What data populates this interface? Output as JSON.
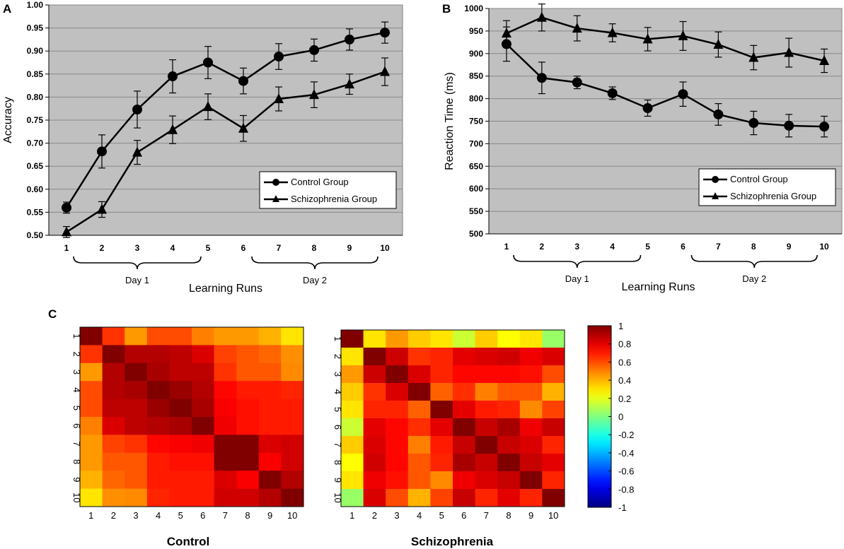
{
  "colors": {
    "plot_bg": "#c0c0c0",
    "grid": "#888888",
    "series": "#000000"
  },
  "chart_data": [
    {
      "panel": "A",
      "type": "line",
      "xlabel": "Learning Runs",
      "ylabel": "Accuracy",
      "x": [
        1,
        2,
        3,
        4,
        5,
        6,
        7,
        8,
        9,
        10
      ],
      "xticklabels": [
        "1",
        "2",
        "3",
        "4",
        "5",
        "6",
        "7",
        "8",
        "9",
        "10"
      ],
      "ylim": [
        0.5,
        1.0
      ],
      "yticks": [
        0.5,
        0.55,
        0.6,
        0.65,
        0.7,
        0.75,
        0.8,
        0.85,
        0.9,
        0.95,
        1.0
      ],
      "yticklabels": [
        "0.50",
        "0.55",
        "0.60",
        "0.65",
        "0.70",
        "0.75",
        "0.80",
        "0.85",
        "0.90",
        "0.95",
        "1.00"
      ],
      "grid": true,
      "legend": "lower-right",
      "series": [
        {
          "name": "Control Group",
          "marker": "circle",
          "values": [
            0.56,
            0.682,
            0.773,
            0.845,
            0.875,
            0.835,
            0.888,
            0.902,
            0.925,
            0.94
          ],
          "errors": [
            0.012,
            0.036,
            0.04,
            0.036,
            0.035,
            0.028,
            0.028,
            0.024,
            0.023,
            0.023
          ]
        },
        {
          "name": "Schizophrenia Group",
          "marker": "triangle",
          "values": [
            0.507,
            0.556,
            0.68,
            0.729,
            0.779,
            0.732,
            0.796,
            0.805,
            0.828,
            0.855
          ],
          "errors": [
            0.012,
            0.017,
            0.026,
            0.03,
            0.028,
            0.028,
            0.026,
            0.028,
            0.022,
            0.03
          ]
        }
      ],
      "annotations": [
        {
          "text": "Day 1",
          "runs": [
            1,
            5
          ]
        },
        {
          "text": "Day 2",
          "runs": [
            6,
            10
          ]
        }
      ]
    },
    {
      "panel": "B",
      "type": "line",
      "xlabel": "Learning Runs",
      "ylabel": "Reaction Time (ms)",
      "x": [
        1,
        2,
        3,
        4,
        5,
        6,
        7,
        8,
        9,
        10
      ],
      "xticklabels": [
        "1",
        "2",
        "3",
        "4",
        "5",
        "6",
        "7",
        "8",
        "9",
        "10"
      ],
      "ylim": [
        500,
        1000
      ],
      "yticks": [
        500,
        550,
        600,
        650,
        700,
        750,
        800,
        850,
        900,
        950,
        1000
      ],
      "yticklabels": [
        "500",
        "550",
        "600",
        "650",
        "700",
        "750",
        "800",
        "850",
        "900",
        "950",
        "1000"
      ],
      "grid": true,
      "legend": "lower-right",
      "series": [
        {
          "name": "Control Group",
          "marker": "circle",
          "values": [
            921,
            846,
            836,
            812,
            779,
            810,
            765,
            746,
            740,
            738
          ],
          "errors": [
            38,
            35,
            14,
            14,
            18,
            27,
            24,
            26,
            25,
            23
          ]
        },
        {
          "name": "Schizophrenia Group",
          "marker": "triangle",
          "values": [
            945,
            980,
            956,
            946,
            932,
            939,
            920,
            891,
            902,
            884
          ],
          "errors": [
            28,
            30,
            28,
            20,
            26,
            32,
            28,
            27,
            32,
            26
          ]
        }
      ],
      "annotations": [
        {
          "text": "Day 1",
          "runs": [
            1,
            5
          ]
        },
        {
          "text": "Day 2",
          "runs": [
            6,
            10
          ]
        }
      ]
    },
    {
      "panel": "C",
      "type": "heatmap",
      "title": "Control",
      "labels": [
        "1",
        "2",
        "3",
        "4",
        "5",
        "6",
        "7",
        "8",
        "9",
        "10"
      ],
      "matrix": [
        [
          1.0,
          0.65,
          0.45,
          0.6,
          0.6,
          0.5,
          0.45,
          0.45,
          0.4,
          0.3
        ],
        [
          0.65,
          1.0,
          0.9,
          0.9,
          0.88,
          0.82,
          0.62,
          0.58,
          0.55,
          0.47
        ],
        [
          0.45,
          0.9,
          1.0,
          0.92,
          0.88,
          0.88,
          0.65,
          0.58,
          0.58,
          0.48
        ],
        [
          0.6,
          0.9,
          0.92,
          1.0,
          0.95,
          0.9,
          0.74,
          0.7,
          0.7,
          0.68
        ],
        [
          0.6,
          0.88,
          0.88,
          0.95,
          1.0,
          0.92,
          0.76,
          0.72,
          0.7,
          0.7
        ],
        [
          0.5,
          0.82,
          0.88,
          0.9,
          0.92,
          1.0,
          0.78,
          0.72,
          0.7,
          0.7
        ],
        [
          0.45,
          0.62,
          0.65,
          0.74,
          0.76,
          0.78,
          1.0,
          1.0,
          0.82,
          0.84
        ],
        [
          0.45,
          0.58,
          0.58,
          0.7,
          0.72,
          0.72,
          1.0,
          1.0,
          0.76,
          0.84
        ],
        [
          0.4,
          0.55,
          0.58,
          0.7,
          0.7,
          0.7,
          0.82,
          0.76,
          1.0,
          0.9
        ],
        [
          0.3,
          0.47,
          0.48,
          0.68,
          0.7,
          0.7,
          0.84,
          0.84,
          0.9,
          1.0
        ]
      ]
    },
    {
      "panel": "C",
      "type": "heatmap",
      "title": "Schizophrenia",
      "labels": [
        "1",
        "2",
        "3",
        "4",
        "5",
        "6",
        "7",
        "8",
        "9",
        "10"
      ],
      "matrix": [
        [
          1.0,
          0.3,
          0.45,
          0.35,
          0.3,
          0.15,
          0.35,
          0.25,
          0.3,
          0.05
        ],
        [
          0.3,
          1.0,
          0.85,
          0.65,
          0.68,
          0.8,
          0.82,
          0.84,
          0.78,
          0.82
        ],
        [
          0.45,
          0.85,
          1.0,
          0.82,
          0.68,
          0.74,
          0.74,
          0.74,
          0.72,
          0.6
        ],
        [
          0.35,
          0.65,
          0.82,
          1.0,
          0.56,
          0.66,
          0.5,
          0.58,
          0.58,
          0.4
        ],
        [
          0.3,
          0.68,
          0.68,
          0.56,
          1.0,
          0.8,
          0.7,
          0.68,
          0.48,
          0.62
        ],
        [
          0.15,
          0.8,
          0.74,
          0.66,
          0.8,
          1.0,
          0.86,
          0.92,
          0.78,
          0.86
        ],
        [
          0.35,
          0.82,
          0.74,
          0.5,
          0.7,
          0.86,
          1.0,
          0.86,
          0.82,
          0.68
        ],
        [
          0.25,
          0.84,
          0.74,
          0.58,
          0.68,
          0.92,
          0.86,
          1.0,
          0.86,
          0.8
        ],
        [
          0.3,
          0.78,
          0.72,
          0.58,
          0.48,
          0.78,
          0.82,
          0.86,
          1.0,
          0.68
        ],
        [
          0.05,
          0.82,
          0.6,
          0.4,
          0.62,
          0.86,
          0.68,
          0.8,
          0.68,
          1.0
        ]
      ]
    },
    {
      "panel": "C",
      "type": "colorbar",
      "range": [
        -1,
        1
      ],
      "ticks": [
        1,
        0.8,
        0.6,
        0.4,
        0.2,
        0,
        -0.2,
        -0.4,
        -0.6,
        -0.8,
        -1
      ],
      "ticklabels": [
        "1",
        "0.8",
        "0.6",
        "0.4",
        "0.2",
        "0",
        "-0.2",
        "-0.4",
        "-0.6",
        "-0.8",
        "-1"
      ]
    }
  ]
}
